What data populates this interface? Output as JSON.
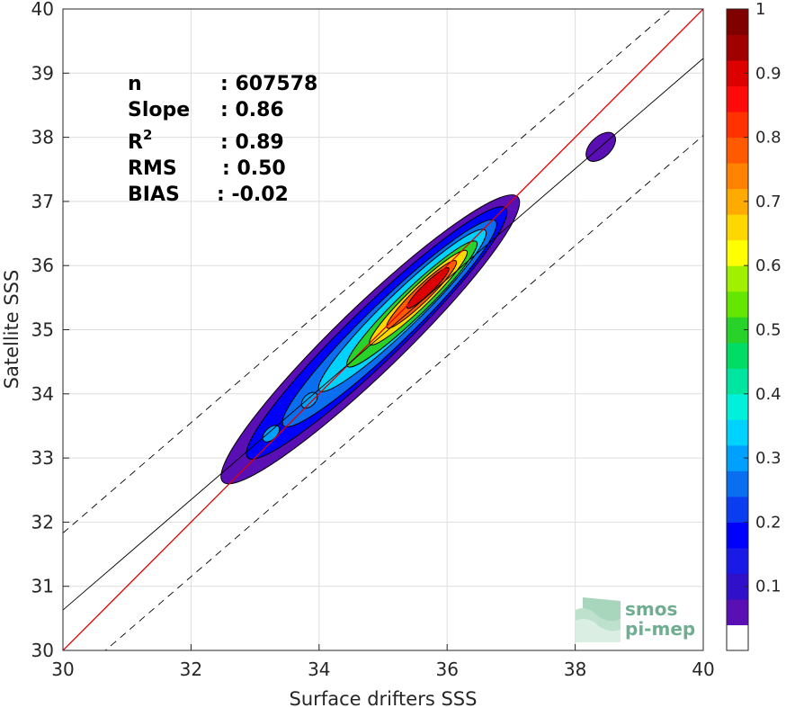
{
  "chart_data": {
    "type": "heatmap",
    "title": "",
    "xlabel": "Surface drifters SSS",
    "ylabel": "Satellite SSS",
    "xlim": [
      30,
      40
    ],
    "ylim": [
      30,
      40
    ],
    "xticks": [
      "30",
      "32",
      "34",
      "36",
      "38",
      "40"
    ],
    "yticks": [
      "30",
      "31",
      "32",
      "33",
      "34",
      "35",
      "36",
      "37",
      "38",
      "39",
      "40"
    ],
    "grid": true,
    "stats": [
      {
        "label": "n",
        "value": ": 607578"
      },
      {
        "label": "Slope",
        "value": ": 0.86"
      },
      {
        "label": "R",
        "sup": "2",
        "value": ": 0.89"
      },
      {
        "label": "RMS",
        "value": ": 0.50"
      },
      {
        "label": "BIAS",
        "value": ": -0.02"
      }
    ],
    "identity_line": {
      "slope": 1,
      "intercept": 0,
      "color": "#e00000"
    },
    "regression_line": {
      "slope": 0.86,
      "intercept": 4.83,
      "color": "#000000"
    },
    "envelope_lines": {
      "offset": 1.2,
      "style": "dashed",
      "color": "#000000"
    },
    "density_contours": [
      {
        "level": 0.05,
        "cx": 34.8,
        "cy": 34.85,
        "along": 3.2,
        "across": 0.52
      },
      {
        "level": 0.15,
        "cx": 34.9,
        "cy": 34.95,
        "along": 2.8,
        "across": 0.42
      },
      {
        "level": 0.25,
        "cx": 35.1,
        "cy": 35.1,
        "along": 2.3,
        "across": 0.34
      },
      {
        "level": 0.35,
        "cx": 35.3,
        "cy": 35.3,
        "along": 1.8,
        "across": 0.27
      },
      {
        "level": 0.5,
        "cx": 35.45,
        "cy": 35.4,
        "along": 1.4,
        "across": 0.21
      },
      {
        "level": 0.65,
        "cx": 35.55,
        "cy": 35.5,
        "along": 1.05,
        "across": 0.16
      },
      {
        "level": 0.8,
        "cx": 35.6,
        "cy": 35.55,
        "along": 0.75,
        "across": 0.12
      },
      {
        "level": 0.9,
        "cx": 35.7,
        "cy": 35.65,
        "along": 0.45,
        "across": 0.08
      },
      {
        "level": 0.05,
        "cx": 38.4,
        "cy": 37.85,
        "along": 0.28,
        "across": 0.16
      },
      {
        "level": 0.3,
        "cx": 33.25,
        "cy": 33.38,
        "along": 0.16,
        "across": 0.09
      },
      {
        "level": 0.3,
        "cx": 33.85,
        "cy": 33.9,
        "along": 0.15,
        "across": 0.09
      }
    ],
    "colorbar": {
      "min": 0,
      "max": 1,
      "ticks": [
        "0.1",
        "0.2",
        "0.3",
        "0.4",
        "0.5",
        "0.6",
        "0.7",
        "0.8",
        "0.9",
        "1"
      ],
      "colors": [
        "#ffffff",
        "#5a0fb4",
        "#3010c8",
        "#1a1ae6",
        "#0000ff",
        "#0a3cf0",
        "#0a6ef0",
        "#00a0ff",
        "#00d2ff",
        "#00f0dc",
        "#00e6a0",
        "#00dc64",
        "#28d228",
        "#64e600",
        "#a0f000",
        "#ffff00",
        "#ffd700",
        "#ffaa00",
        "#ff8200",
        "#ff5a00",
        "#ff3200",
        "#ff0a0a",
        "#dc0000",
        "#a00000",
        "#800000"
      ]
    }
  },
  "logo": {
    "line1": "smos",
    "line2": "pi-mep"
  }
}
